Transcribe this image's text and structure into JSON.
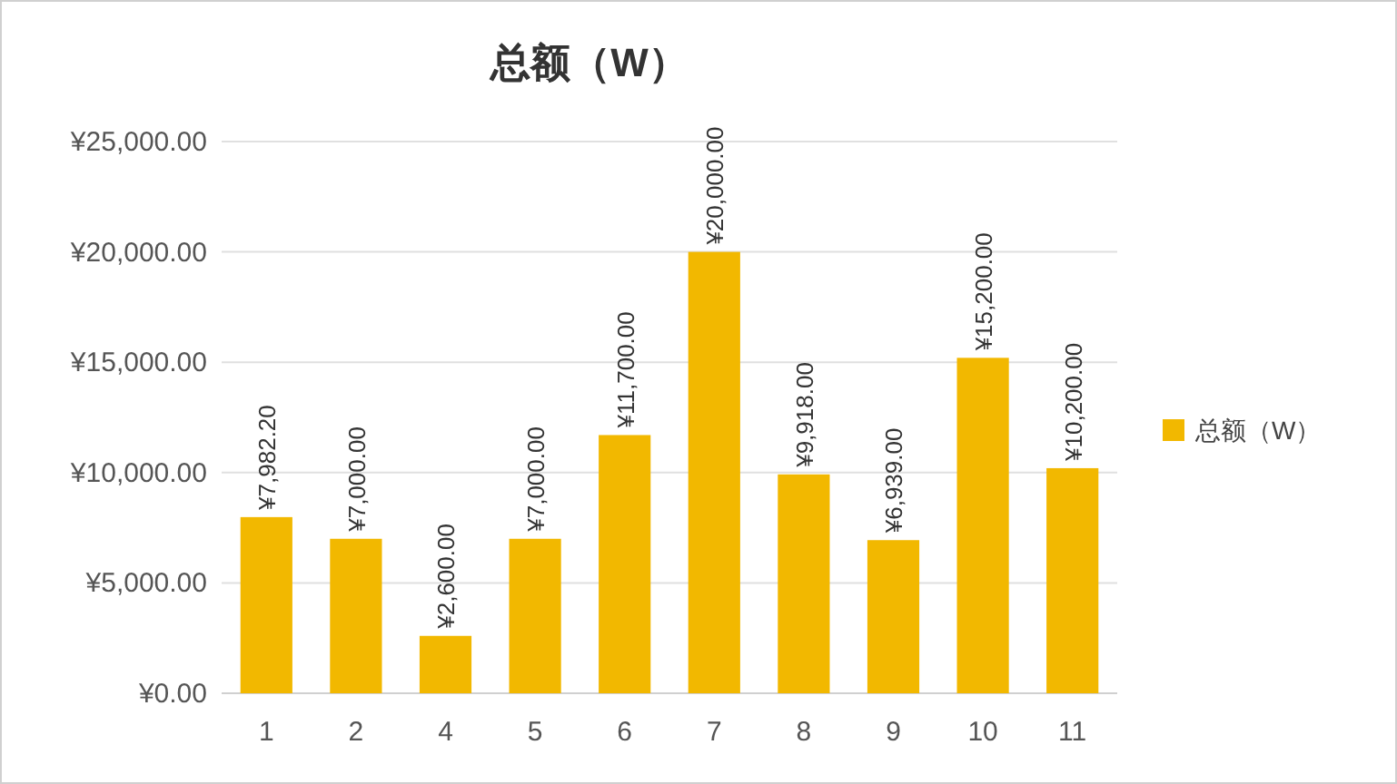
{
  "chart_data": {
    "type": "bar",
    "title": "总额（W）",
    "categories": [
      "1",
      "2",
      "4",
      "5",
      "6",
      "7",
      "8",
      "9",
      "10",
      "11"
    ],
    "series": [
      {
        "name": "总额（W）",
        "color": "#f2b800",
        "values": [
          7982.2,
          7000,
          2600,
          7000,
          11700,
          20000,
          9918,
          6939,
          15200,
          10200
        ],
        "value_labels": [
          "¥7,982.20",
          "¥7,000.00",
          "¥2,600.00",
          "¥7,000.00",
          "¥11,700.00",
          "¥20,000.00",
          "¥9,918.00",
          "¥6,939.00",
          "¥15,200.00",
          "¥10,200.00"
        ]
      }
    ],
    "ylim": [
      0,
      25000
    ],
    "yticks": [
      {
        "value": 0,
        "label": "¥0.00"
      },
      {
        "value": 5000,
        "label": "¥5,000.00"
      },
      {
        "value": 10000,
        "label": "¥10,000.00"
      },
      {
        "value": 15000,
        "label": "¥15,000.00"
      },
      {
        "value": 20000,
        "label": "¥20,000.00"
      },
      {
        "value": 25000,
        "label": "¥25,000.00"
      }
    ],
    "grid": "y",
    "legend": "right"
  }
}
